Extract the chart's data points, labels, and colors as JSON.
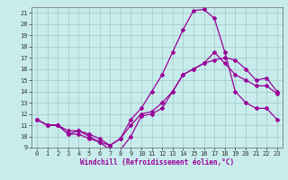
{
  "xlabel": "Windchill (Refroidissement éolien,°C)",
  "bg_color": "#c8ecec",
  "grid_color": "#b0d0d0",
  "line_color": "#990099",
  "xlim": [
    -0.5,
    23.5
  ],
  "ylim": [
    9,
    21.5
  ],
  "xticks": [
    0,
    1,
    2,
    3,
    4,
    5,
    6,
    7,
    8,
    9,
    10,
    11,
    12,
    13,
    14,
    15,
    16,
    17,
    18,
    19,
    20,
    21,
    22,
    23
  ],
  "yticks": [
    9,
    10,
    11,
    12,
    13,
    14,
    15,
    16,
    17,
    18,
    19,
    20,
    21
  ],
  "line1_x": [
    0,
    1,
    2,
    3,
    4,
    5,
    6,
    7,
    8,
    9,
    10,
    11,
    12,
    13,
    14,
    15,
    16,
    17,
    18,
    19,
    20,
    21,
    22,
    23
  ],
  "line1_y": [
    11.5,
    11.0,
    11.0,
    10.5,
    10.5,
    10.0,
    9.5,
    8.8,
    8.8,
    10.0,
    11.8,
    12.0,
    12.5,
    14.0,
    15.5,
    16.0,
    16.5,
    16.8,
    17.0,
    16.8,
    16.0,
    15.0,
    15.2,
    14.0
  ],
  "line2_x": [
    0,
    1,
    2,
    3,
    4,
    5,
    6,
    7,
    8,
    9,
    10,
    11,
    12,
    13,
    14,
    15,
    16,
    17,
    18,
    19,
    20,
    21,
    22,
    23
  ],
  "line2_y": [
    11.5,
    11.0,
    11.0,
    10.2,
    10.2,
    9.8,
    9.5,
    9.2,
    9.8,
    11.5,
    12.5,
    14.0,
    15.5,
    17.5,
    19.5,
    21.2,
    21.3,
    20.5,
    17.5,
    14.0,
    13.0,
    12.5,
    12.5,
    11.5
  ],
  "line3_x": [
    0,
    1,
    2,
    3,
    4,
    5,
    6,
    7,
    8,
    9,
    10,
    11,
    12,
    13,
    14,
    15,
    16,
    17,
    18,
    19,
    20,
    21,
    22,
    23
  ],
  "line3_y": [
    11.5,
    11.0,
    11.0,
    10.2,
    10.5,
    10.2,
    9.8,
    9.2,
    9.8,
    11.0,
    12.0,
    12.2,
    13.0,
    14.0,
    15.5,
    16.0,
    16.5,
    17.5,
    16.5,
    15.5,
    15.0,
    14.5,
    14.5,
    13.8
  ],
  "marker": "D",
  "markersize": 2,
  "linewidth": 0.9,
  "xlabel_fontsize": 5.5,
  "tick_fontsize": 5
}
